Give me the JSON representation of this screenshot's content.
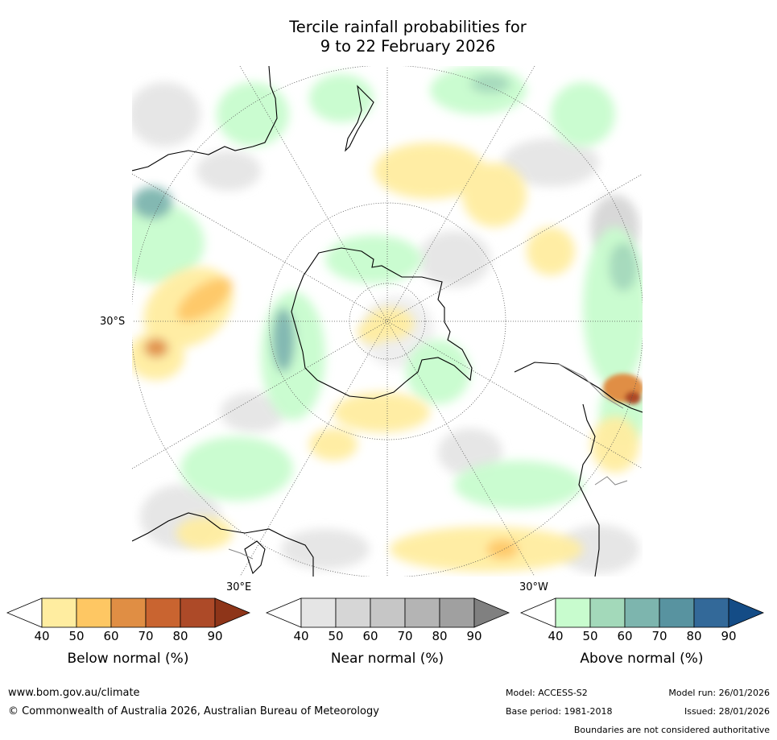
{
  "title": {
    "line1": "Tercile rainfall probabilities for",
    "line2": "9 to 22 February 2026"
  },
  "map": {
    "projection": "south polar stereographic",
    "grid_labels": {
      "lat": "30°S",
      "lon_east": "30°E",
      "lon_west": "30°W"
    },
    "colors": {
      "ocean_background": "#ffffff",
      "coastline": "#000000",
      "boundary": "#888888",
      "graticule": "#555555"
    }
  },
  "colorbars": [
    {
      "name": "below",
      "title": "Below normal (%)",
      "ticks": [
        "40",
        "50",
        "60",
        "70",
        "80",
        "90"
      ],
      "low_extend_color": "#ffffff",
      "colors": [
        "#ffeda0",
        "#fec763",
        "#e08e44",
        "#c96430",
        "#ad4a28"
      ],
      "high_extend_color": "#8e3519"
    },
    {
      "name": "near",
      "title": "Near normal (%)",
      "ticks": [
        "40",
        "50",
        "60",
        "70",
        "80",
        "90"
      ],
      "low_extend_color": "#ffffff",
      "colors": [
        "#e5e5e5",
        "#d6d6d6",
        "#c6c6c6",
        "#b4b4b4",
        "#a0a0a0"
      ],
      "high_extend_color": "#808080"
    },
    {
      "name": "above",
      "title": "Above normal (%)",
      "ticks": [
        "40",
        "50",
        "60",
        "70",
        "80",
        "90"
      ],
      "low_extend_color": "#ffffff",
      "colors": [
        "#c8fcce",
        "#a3d9ba",
        "#7db5ae",
        "#5893a0",
        "#336999"
      ],
      "high_extend_color": "#144c86"
    }
  ],
  "footer": {
    "url": "www.bom.gov.au/climate",
    "copyright": "© Commonwealth of Australia 2026, Australian Bureau of Meteorology",
    "model": "Model: ACCESS-S2",
    "base_period": "Base period: 1981-2018",
    "model_run": "Model run: 26/01/2026",
    "issued": "Issued: 28/01/2026",
    "disclaimer": "Boundaries are not considered authoritative"
  }
}
